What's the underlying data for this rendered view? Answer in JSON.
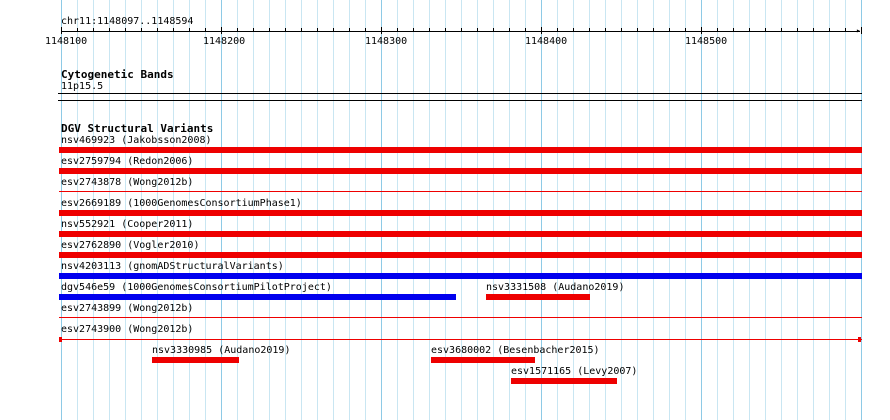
{
  "region": "chr11:1148097..1148594",
  "ruler": {
    "ticks": [
      "1148100",
      "1148200",
      "1148300",
      "1148400",
      "1148500"
    ]
  },
  "cytogenetic": {
    "title": "Cytogenetic Bands",
    "band": "11p15.5"
  },
  "dgv": {
    "title": "DGV Structural Variants",
    "features": [
      {
        "label": "nsv469923 (Jakobsson2008)",
        "color": "#ee0000",
        "style": "thick"
      },
      {
        "label": "esv2759794 (Redon2006)",
        "color": "#ee0000",
        "style": "thick"
      },
      {
        "label": "esv2743878 (Wong2012b)",
        "color": "#ee0000",
        "style": "thin"
      },
      {
        "label": "esv2669189 (1000GenomesConsortiumPhase1)",
        "color": "#ee0000",
        "style": "thick"
      },
      {
        "label": "nsv552921 (Cooper2011)",
        "color": "#ee0000",
        "style": "thick"
      },
      {
        "label": "esv2762890 (Vogler2010)",
        "color": "#ee0000",
        "style": "thick"
      },
      {
        "label": "nsv4203113 (gnomADStructuralVariants)",
        "color": "#0000ee",
        "style": "thick"
      },
      {
        "label": "dgv546e59 (1000GenomesConsortiumPilotProject)",
        "color": "#0000ee",
        "style": "thick-partial"
      },
      {
        "label": "nsv3331508 (Audano2019)",
        "color": "#ee0000",
        "style": "thick-partial"
      },
      {
        "label": "esv2743899 (Wong2012b)",
        "color": "#ee0000",
        "style": "thin"
      },
      {
        "label": "esv2743900 (Wong2012b)",
        "color": "#ee0000",
        "style": "thin-capped"
      },
      {
        "label": "nsv3330985 (Audano2019)",
        "color": "#ee0000",
        "style": "thick-partial"
      },
      {
        "label": "esv3680002 (Besenbacher2015)",
        "color": "#ee0000",
        "style": "thick-partial"
      },
      {
        "label": "esv1571165 (Levy2007)",
        "color": "#ee0000",
        "style": "thick-partial"
      }
    ]
  }
}
